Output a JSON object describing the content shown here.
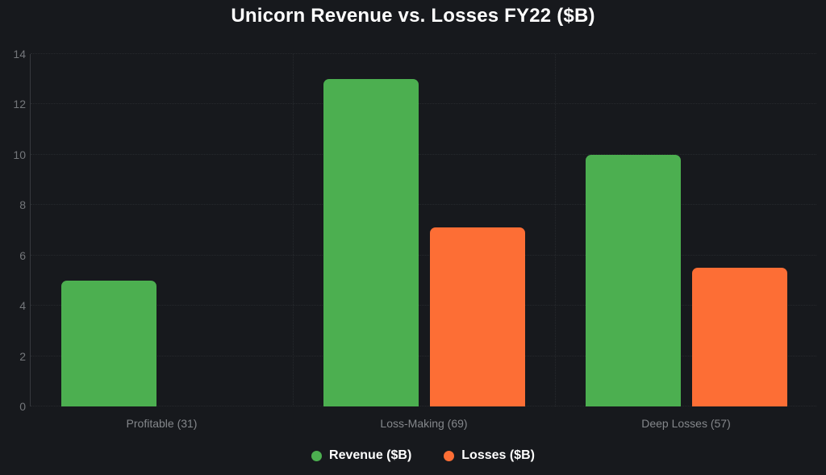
{
  "title": "Unicorn Revenue vs. Losses FY22 ($B)",
  "colors": {
    "background": "#17191d",
    "revenue": "#4caf50",
    "losses": "#fd6e35",
    "grid": "#26292d",
    "axis_border": "#36393e",
    "y_tick_label": "#74777b",
    "category_label": "#84878b",
    "title_text": "#ffffff",
    "legend_text": "#ffffff"
  },
  "chart_data": {
    "type": "bar",
    "title": "Unicorn Revenue vs. Losses FY22 ($B)",
    "categories": [
      "Profitable (31)",
      "Loss-Making (69)",
      "Deep Losses (57)"
    ],
    "series": [
      {
        "name": "Revenue ($B)",
        "color": "#4caf50",
        "values": [
          5.0,
          13.0,
          10.0
        ]
      },
      {
        "name": "Losses ($B)",
        "color": "#fd6e35",
        "values": [
          0,
          7.1,
          5.5
        ]
      }
    ],
    "ylim": [
      0,
      14
    ],
    "yticks": [
      0,
      2,
      4,
      6,
      8,
      10,
      12,
      14
    ],
    "grid": true,
    "legend_position": "bottom"
  }
}
